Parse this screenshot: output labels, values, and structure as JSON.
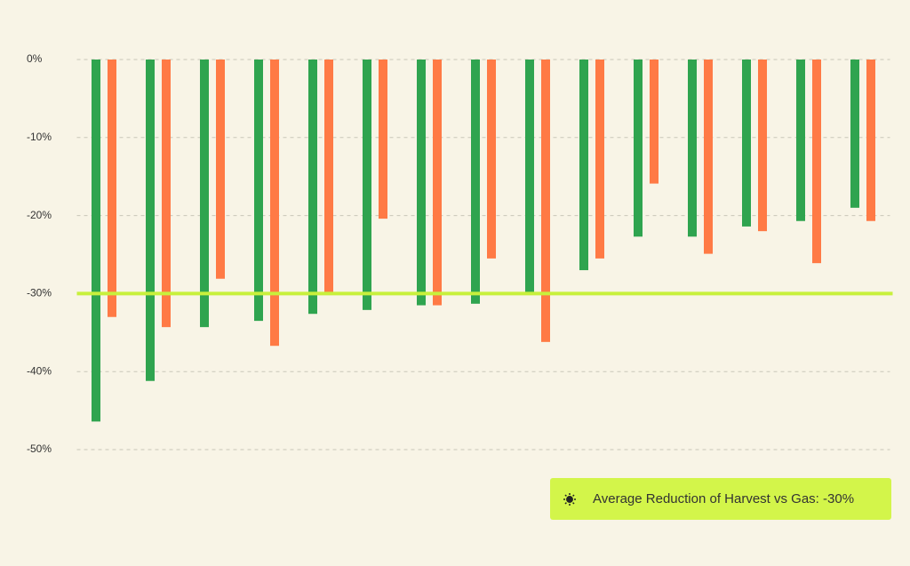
{
  "chart_data": {
    "type": "bar",
    "categories": [
      null,
      null,
      null,
      null,
      null,
      null,
      null,
      null,
      null,
      null,
      null,
      null,
      null,
      null,
      null
    ],
    "series": [
      {
        "color": "#2fa44f",
        "values": [
          -46.4,
          -41.2,
          -34.3,
          -33.5,
          -32.6,
          -32.1,
          -31.5,
          -31.3,
          -30.1,
          -27.0,
          -22.7,
          -22.7,
          -21.4,
          -20.7,
          -19.0
        ]
      },
      {
        "color": "#ff7a45",
        "values": [
          -33.0,
          -34.3,
          -28.1,
          -36.7,
          -29.8,
          -20.4,
          -31.5,
          -25.5,
          -36.2,
          -25.5,
          -15.9,
          -24.9,
          -22.0,
          -26.1,
          -20.7
        ]
      }
    ],
    "ylim": [
      -50,
      0
    ],
    "yticks": [
      {
        "value": 0,
        "label": "0%"
      },
      {
        "value": -10,
        "label": "-10%"
      },
      {
        "value": -20,
        "label": "-20%"
      },
      {
        "value": -30,
        "label": "-30%"
      },
      {
        "value": -40,
        "label": "-40%"
      },
      {
        "value": -50,
        "label": "-50%"
      }
    ],
    "grid": true,
    "reference_line": {
      "value": -30,
      "color": "#c8f03c"
    },
    "annotation": "Average Reduction of Harvest vs Gas: -30%"
  }
}
